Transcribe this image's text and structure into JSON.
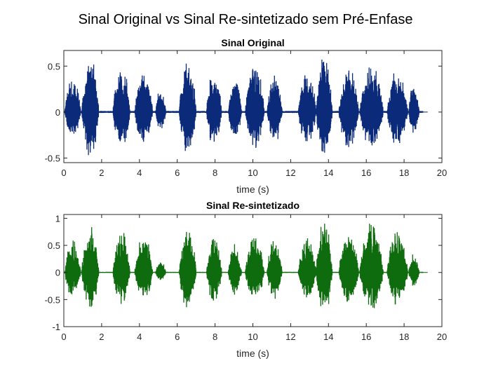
{
  "figure": {
    "suptitle": "Sinal Original vs Sinal Re-sintetizado sem Pré-Enfase"
  },
  "chart_data": [
    {
      "type": "line",
      "title": "Sinal Original",
      "xlabel": "time (s)",
      "ylabel": "",
      "xlim": [
        0,
        20
      ],
      "ylim": [
        -0.55,
        0.67
      ],
      "xticks": [
        0,
        2,
        4,
        6,
        8,
        10,
        12,
        14,
        16,
        18,
        20
      ],
      "yticks": [
        -0.5,
        0,
        0.5
      ],
      "ytick_labels": [
        "-0.5",
        "0",
        "0.5"
      ],
      "grid": false,
      "series": [
        {
          "color": "#0b2a7a",
          "signal_end": 19.0,
          "bursts": [
            {
              "start": 0.05,
              "end": 0.9,
              "peak": 0.4
            },
            {
              "start": 0.95,
              "end": 1.85,
              "peak": 0.63
            },
            {
              "start": 2.6,
              "end": 3.5,
              "peak": 0.55
            },
            {
              "start": 3.75,
              "end": 4.7,
              "peak": 0.5
            },
            {
              "start": 4.85,
              "end": 5.4,
              "peak": 0.27
            },
            {
              "start": 6.1,
              "end": 7.0,
              "peak": 0.6
            },
            {
              "start": 7.55,
              "end": 8.35,
              "peak": 0.51
            },
            {
              "start": 8.7,
              "end": 9.4,
              "peak": 0.4
            },
            {
              "start": 9.6,
              "end": 10.6,
              "peak": 0.55
            },
            {
              "start": 10.75,
              "end": 11.55,
              "peak": 0.46
            },
            {
              "start": 12.4,
              "end": 13.35,
              "peak": 0.48
            },
            {
              "start": 13.35,
              "end": 14.2,
              "peak": 0.66
            },
            {
              "start": 14.55,
              "end": 15.6,
              "peak": 0.52
            },
            {
              "start": 15.65,
              "end": 16.9,
              "peak": 0.55
            },
            {
              "start": 17.1,
              "end": 18.2,
              "peak": 0.48
            },
            {
              "start": 18.25,
              "end": 18.8,
              "peak": 0.34
            }
          ]
        }
      ]
    },
    {
      "type": "line",
      "title": "Sinal Re-sintetizado",
      "xlabel": "time (s)",
      "ylabel": "",
      "xlim": [
        0,
        20
      ],
      "ylim": [
        -1,
        1.07
      ],
      "xticks": [
        0,
        2,
        4,
        6,
        8,
        10,
        12,
        14,
        16,
        18,
        20
      ],
      "yticks": [
        -1,
        -0.5,
        0,
        0.5,
        1
      ],
      "ytick_labels": [
        "-1",
        "-0.5",
        "0",
        "0.5",
        "1"
      ],
      "grid": false,
      "series": [
        {
          "color": "#0e6b0e",
          "signal_end": 19.0,
          "bursts": [
            {
              "start": 0.05,
              "end": 0.9,
              "peak": 0.62
            },
            {
              "start": 0.95,
              "end": 1.85,
              "peak": 0.95
            },
            {
              "start": 2.6,
              "end": 3.5,
              "peak": 0.8
            },
            {
              "start": 3.75,
              "end": 4.7,
              "peak": 0.72
            },
            {
              "start": 4.85,
              "end": 5.4,
              "peak": 0.22
            },
            {
              "start": 6.1,
              "end": 7.0,
              "peak": 0.9
            },
            {
              "start": 7.55,
              "end": 8.35,
              "peak": 0.8
            },
            {
              "start": 8.7,
              "end": 9.4,
              "peak": 0.55
            },
            {
              "start": 9.6,
              "end": 10.6,
              "peak": 0.72
            },
            {
              "start": 10.75,
              "end": 11.55,
              "peak": 0.65
            },
            {
              "start": 12.4,
              "end": 13.35,
              "peak": 0.7
            },
            {
              "start": 13.35,
              "end": 14.2,
              "peak": 1.05
            },
            {
              "start": 14.55,
              "end": 15.6,
              "peak": 0.78
            },
            {
              "start": 15.65,
              "end": 16.9,
              "peak": 0.95
            },
            {
              "start": 17.1,
              "end": 18.2,
              "peak": 0.82
            },
            {
              "start": 18.25,
              "end": 18.8,
              "peak": 0.4
            }
          ]
        }
      ]
    }
  ]
}
